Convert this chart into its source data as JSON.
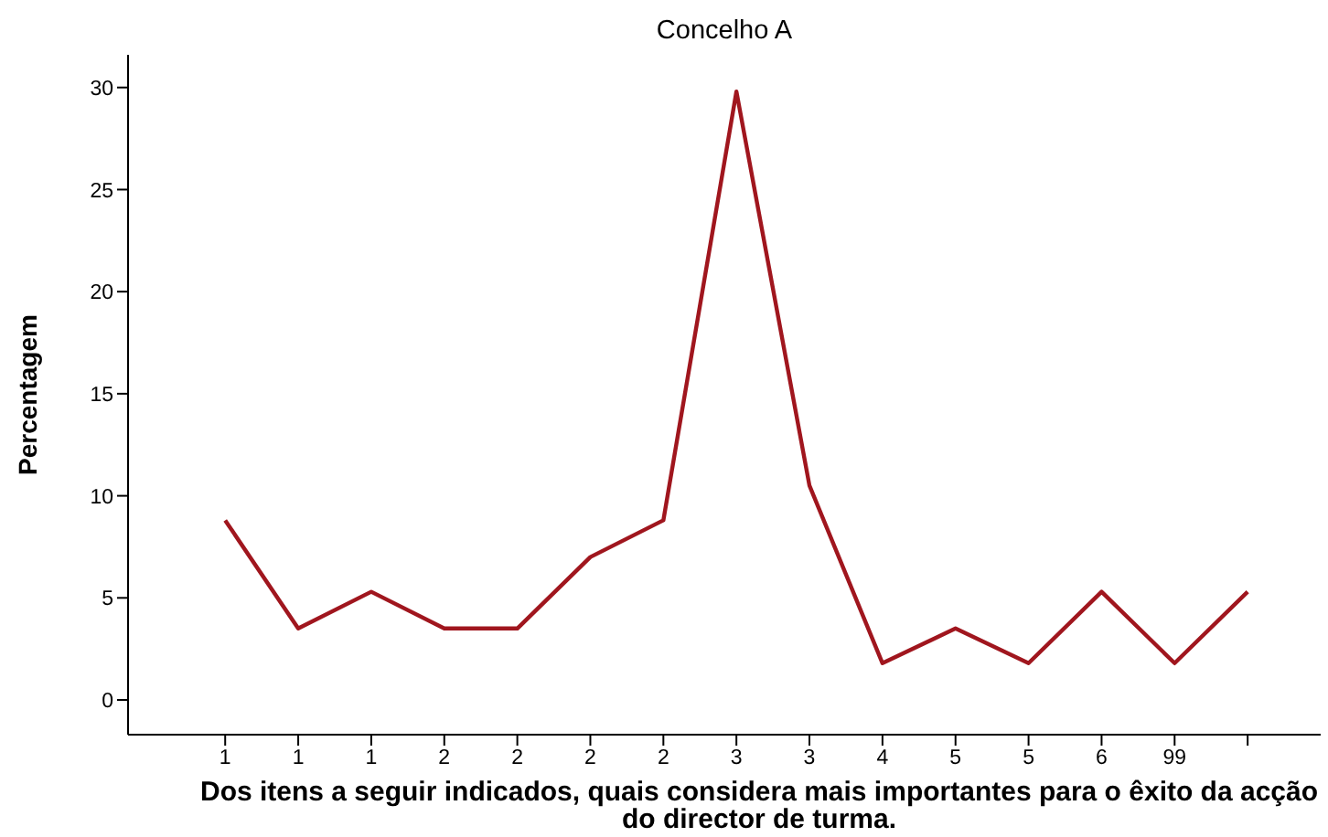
{
  "chart_data": {
    "type": "line",
    "title": "Concelho A",
    "xlabel": "Dos itens a seguir indicados, quais considera mais importantes para o êxito da acção do director de turma.",
    "ylabel": "Percentagem",
    "categories": [
      "1",
      "1",
      "1",
      "2",
      "2",
      "2",
      "2",
      "3",
      "3",
      "4",
      "5",
      "5",
      "6",
      "99",
      null
    ],
    "series": [
      {
        "color": "#a0161e",
        "values": [
          8.8,
          3.5,
          5.3,
          3.5,
          3.5,
          7.0,
          8.8,
          29.8,
          10.5,
          1.8,
          3.5,
          1.8,
          5.3,
          1.8,
          5.3
        ]
      }
    ],
    "ylim": [
      -1.7,
      31.6
    ],
    "yticks": [
      0,
      5,
      10,
      15,
      20,
      25,
      30
    ],
    "grid": false,
    "legend": false,
    "marker": "none",
    "line_style": "solid"
  }
}
